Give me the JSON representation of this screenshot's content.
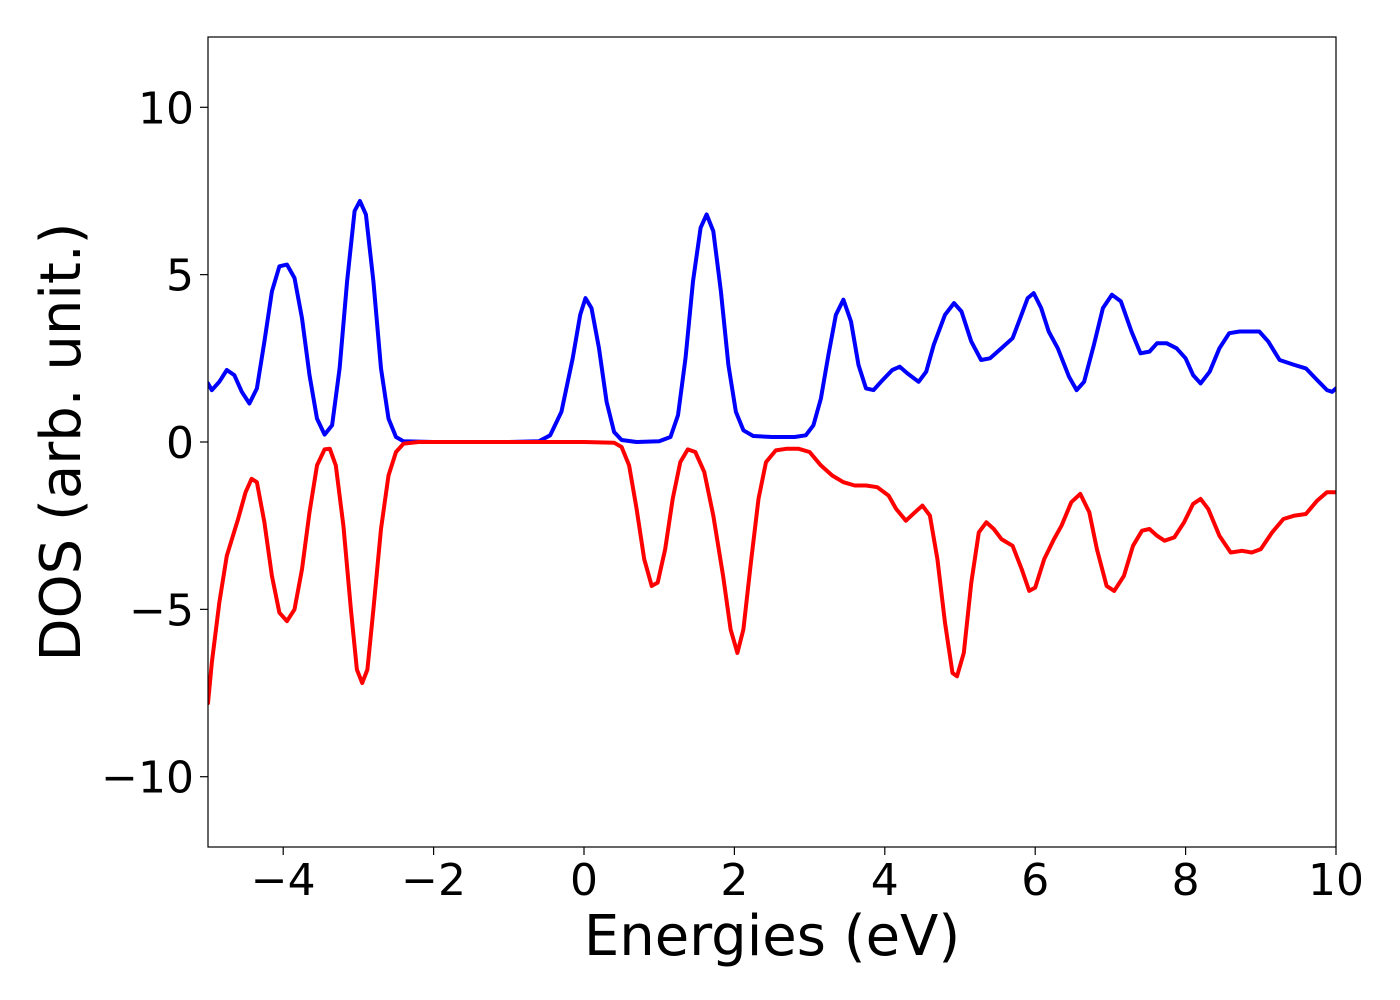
{
  "chart_data": {
    "type": "line",
    "title": "",
    "xlabel": "Energies (eV)",
    "ylabel": "DOS (arb. unit.)",
    "xlim": [
      -5,
      10
    ],
    "ylim": [
      -12.1,
      12.1
    ],
    "xticks": [
      -4,
      -2,
      0,
      2,
      4,
      6,
      8,
      10
    ],
    "xtick_labels": [
      "−4",
      "−2",
      "0",
      "2",
      "4",
      "6",
      "8",
      "10"
    ],
    "yticks": [
      -10,
      -5,
      0,
      5,
      10
    ],
    "ytick_labels": [
      "−10",
      "−5",
      "0",
      "5",
      "10"
    ],
    "grid": false,
    "series": [
      {
        "color": "#0000ff",
        "points": [
          [
            -5.0,
            1.75
          ],
          [
            -4.95,
            1.55
          ],
          [
            -4.85,
            1.8
          ],
          [
            -4.75,
            2.15
          ],
          [
            -4.65,
            2.0
          ],
          [
            -4.55,
            1.5
          ],
          [
            -4.45,
            1.15
          ],
          [
            -4.35,
            1.6
          ],
          [
            -4.25,
            3.0
          ],
          [
            -4.15,
            4.5
          ],
          [
            -4.05,
            5.25
          ],
          [
            -3.95,
            5.3
          ],
          [
            -3.85,
            4.9
          ],
          [
            -3.75,
            3.7
          ],
          [
            -3.65,
            2.0
          ],
          [
            -3.55,
            0.7
          ],
          [
            -3.45,
            0.22
          ],
          [
            -3.35,
            0.5
          ],
          [
            -3.25,
            2.2
          ],
          [
            -3.15,
            4.8
          ],
          [
            -3.05,
            6.9
          ],
          [
            -2.98,
            7.2
          ],
          [
            -2.9,
            6.8
          ],
          [
            -2.8,
            4.8
          ],
          [
            -2.7,
            2.2
          ],
          [
            -2.6,
            0.7
          ],
          [
            -2.5,
            0.15
          ],
          [
            -2.4,
            0.02
          ],
          [
            -2.0,
            0.0
          ],
          [
            -1.0,
            0.0
          ],
          [
            -0.6,
            0.02
          ],
          [
            -0.45,
            0.2
          ],
          [
            -0.3,
            0.9
          ],
          [
            -0.15,
            2.5
          ],
          [
            -0.05,
            3.8
          ],
          [
            0.02,
            4.3
          ],
          [
            0.1,
            4.0
          ],
          [
            0.2,
            2.8
          ],
          [
            0.3,
            1.2
          ],
          [
            0.4,
            0.3
          ],
          [
            0.5,
            0.06
          ],
          [
            0.7,
            0.0
          ],
          [
            1.0,
            0.02
          ],
          [
            1.15,
            0.15
          ],
          [
            1.25,
            0.8
          ],
          [
            1.35,
            2.5
          ],
          [
            1.45,
            4.8
          ],
          [
            1.55,
            6.4
          ],
          [
            1.63,
            6.8
          ],
          [
            1.72,
            6.3
          ],
          [
            1.82,
            4.5
          ],
          [
            1.92,
            2.3
          ],
          [
            2.02,
            0.9
          ],
          [
            2.12,
            0.35
          ],
          [
            2.25,
            0.18
          ],
          [
            2.5,
            0.15
          ],
          [
            2.8,
            0.15
          ],
          [
            2.95,
            0.2
          ],
          [
            3.05,
            0.5
          ],
          [
            3.15,
            1.3
          ],
          [
            3.25,
            2.6
          ],
          [
            3.35,
            3.8
          ],
          [
            3.45,
            4.25
          ],
          [
            3.55,
            3.6
          ],
          [
            3.65,
            2.3
          ],
          [
            3.75,
            1.6
          ],
          [
            3.85,
            1.55
          ],
          [
            3.95,
            1.8
          ],
          [
            4.1,
            2.15
          ],
          [
            4.2,
            2.25
          ],
          [
            4.3,
            2.05
          ],
          [
            4.45,
            1.8
          ],
          [
            4.55,
            2.1
          ],
          [
            4.65,
            2.9
          ],
          [
            4.8,
            3.8
          ],
          [
            4.92,
            4.15
          ],
          [
            5.02,
            3.9
          ],
          [
            5.15,
            3.0
          ],
          [
            5.28,
            2.45
          ],
          [
            5.4,
            2.5
          ],
          [
            5.55,
            2.8
          ],
          [
            5.7,
            3.1
          ],
          [
            5.8,
            3.7
          ],
          [
            5.9,
            4.3
          ],
          [
            5.98,
            4.45
          ],
          [
            6.08,
            4.0
          ],
          [
            6.18,
            3.3
          ],
          [
            6.3,
            2.8
          ],
          [
            6.45,
            1.95
          ],
          [
            6.55,
            1.55
          ],
          [
            6.65,
            1.8
          ],
          [
            6.78,
            2.9
          ],
          [
            6.9,
            4.0
          ],
          [
            7.02,
            4.4
          ],
          [
            7.14,
            4.2
          ],
          [
            7.28,
            3.3
          ],
          [
            7.4,
            2.65
          ],
          [
            7.52,
            2.7
          ],
          [
            7.62,
            2.95
          ],
          [
            7.75,
            2.95
          ],
          [
            7.88,
            2.8
          ],
          [
            8.0,
            2.5
          ],
          [
            8.1,
            2.0
          ],
          [
            8.2,
            1.75
          ],
          [
            8.32,
            2.1
          ],
          [
            8.45,
            2.8
          ],
          [
            8.58,
            3.25
          ],
          [
            8.72,
            3.3
          ],
          [
            8.85,
            3.3
          ],
          [
            8.98,
            3.3
          ],
          [
            9.1,
            3.0
          ],
          [
            9.25,
            2.45
          ],
          [
            9.45,
            2.3
          ],
          [
            9.6,
            2.2
          ],
          [
            9.75,
            1.85
          ],
          [
            9.88,
            1.55
          ],
          [
            9.95,
            1.5
          ],
          [
            10.0,
            1.6
          ]
        ]
      },
      {
        "color": "#ff0000",
        "points": [
          [
            -5.0,
            -7.8
          ],
          [
            -4.95,
            -6.6
          ],
          [
            -4.85,
            -4.8
          ],
          [
            -4.75,
            -3.4
          ],
          [
            -4.6,
            -2.3
          ],
          [
            -4.5,
            -1.5
          ],
          [
            -4.42,
            -1.1
          ],
          [
            -4.35,
            -1.2
          ],
          [
            -4.25,
            -2.4
          ],
          [
            -4.15,
            -4.0
          ],
          [
            -4.05,
            -5.1
          ],
          [
            -3.95,
            -5.35
          ],
          [
            -3.85,
            -5.0
          ],
          [
            -3.75,
            -3.8
          ],
          [
            -3.65,
            -2.1
          ],
          [
            -3.55,
            -0.7
          ],
          [
            -3.45,
            -0.22
          ],
          [
            -3.38,
            -0.2
          ],
          [
            -3.3,
            -0.7
          ],
          [
            -3.2,
            -2.5
          ],
          [
            -3.1,
            -5.0
          ],
          [
            -3.02,
            -6.8
          ],
          [
            -2.95,
            -7.2
          ],
          [
            -2.88,
            -6.8
          ],
          [
            -2.8,
            -5.0
          ],
          [
            -2.7,
            -2.6
          ],
          [
            -2.6,
            -1.0
          ],
          [
            -2.5,
            -0.3
          ],
          [
            -2.4,
            -0.05
          ],
          [
            -2.2,
            0.0
          ],
          [
            -1.0,
            0.0
          ],
          [
            0.0,
            0.0
          ],
          [
            0.4,
            -0.02
          ],
          [
            0.5,
            -0.15
          ],
          [
            0.6,
            -0.7
          ],
          [
            0.7,
            -2.0
          ],
          [
            0.8,
            -3.5
          ],
          [
            0.9,
            -4.3
          ],
          [
            0.98,
            -4.2
          ],
          [
            1.08,
            -3.2
          ],
          [
            1.18,
            -1.7
          ],
          [
            1.28,
            -0.6
          ],
          [
            1.38,
            -0.22
          ],
          [
            1.48,
            -0.3
          ],
          [
            1.6,
            -0.9
          ],
          [
            1.72,
            -2.2
          ],
          [
            1.85,
            -4.0
          ],
          [
            1.95,
            -5.6
          ],
          [
            2.04,
            -6.3
          ],
          [
            2.12,
            -5.6
          ],
          [
            2.22,
            -3.6
          ],
          [
            2.32,
            -1.7
          ],
          [
            2.42,
            -0.6
          ],
          [
            2.55,
            -0.25
          ],
          [
            2.7,
            -0.2
          ],
          [
            2.85,
            -0.2
          ],
          [
            3.0,
            -0.3
          ],
          [
            3.15,
            -0.7
          ],
          [
            3.3,
            -1.0
          ],
          [
            3.45,
            -1.2
          ],
          [
            3.6,
            -1.3
          ],
          [
            3.75,
            -1.3
          ],
          [
            3.9,
            -1.35
          ],
          [
            4.05,
            -1.6
          ],
          [
            4.15,
            -2.0
          ],
          [
            4.28,
            -2.35
          ],
          [
            4.4,
            -2.1
          ],
          [
            4.5,
            -1.9
          ],
          [
            4.6,
            -2.2
          ],
          [
            4.7,
            -3.5
          ],
          [
            4.8,
            -5.4
          ],
          [
            4.9,
            -6.9
          ],
          [
            4.96,
            -7.0
          ],
          [
            5.05,
            -6.3
          ],
          [
            5.15,
            -4.2
          ],
          [
            5.25,
            -2.7
          ],
          [
            5.35,
            -2.4
          ],
          [
            5.45,
            -2.6
          ],
          [
            5.55,
            -2.9
          ],
          [
            5.7,
            -3.1
          ],
          [
            5.82,
            -3.8
          ],
          [
            5.92,
            -4.45
          ],
          [
            6.0,
            -4.35
          ],
          [
            6.12,
            -3.5
          ],
          [
            6.25,
            -2.9
          ],
          [
            6.35,
            -2.5
          ],
          [
            6.48,
            -1.8
          ],
          [
            6.6,
            -1.55
          ],
          [
            6.72,
            -2.1
          ],
          [
            6.82,
            -3.2
          ],
          [
            6.95,
            -4.3
          ],
          [
            7.05,
            -4.45
          ],
          [
            7.18,
            -4.0
          ],
          [
            7.3,
            -3.1
          ],
          [
            7.42,
            -2.65
          ],
          [
            7.52,
            -2.6
          ],
          [
            7.62,
            -2.8
          ],
          [
            7.72,
            -2.95
          ],
          [
            7.85,
            -2.85
          ],
          [
            7.98,
            -2.4
          ],
          [
            8.1,
            -1.85
          ],
          [
            8.2,
            -1.7
          ],
          [
            8.3,
            -2.0
          ],
          [
            8.45,
            -2.8
          ],
          [
            8.6,
            -3.3
          ],
          [
            8.75,
            -3.25
          ],
          [
            8.88,
            -3.3
          ],
          [
            9.0,
            -3.2
          ],
          [
            9.15,
            -2.7
          ],
          [
            9.3,
            -2.3
          ],
          [
            9.45,
            -2.2
          ],
          [
            9.6,
            -2.15
          ],
          [
            9.75,
            -1.75
          ],
          [
            9.88,
            -1.5
          ],
          [
            10.0,
            -1.5
          ]
        ]
      }
    ]
  }
}
